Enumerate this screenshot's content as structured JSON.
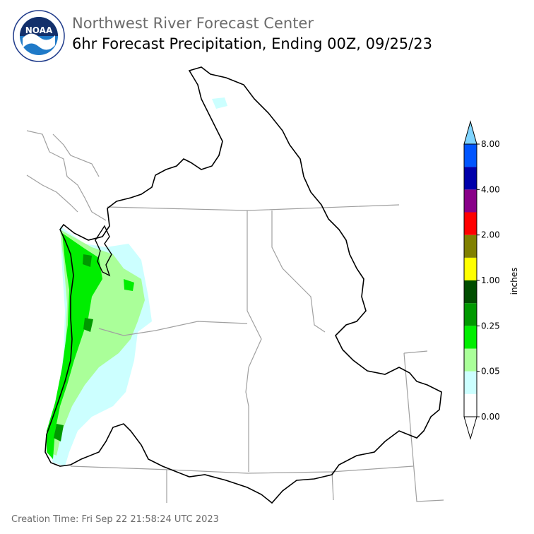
{
  "header": {
    "title_line1": "Northwest River Forecast Center",
    "title_line2": "6hr Forecast Precipitation, Ending 00Z, 09/25/23"
  },
  "logo": {
    "text": "NOAA",
    "ring_text": "NATIONAL OCEANIC AND ATMOSPHERIC ADMINISTRATION · U.S. DEPARTMENT OF COMMERCE",
    "icon": "noaa-logo-icon"
  },
  "footer": {
    "creation_time": "Creation Time: Fri Sep 22 21:58:24 UTC 2023"
  },
  "legend": {
    "unit": "inches",
    "tick_labels": [
      "0.00",
      "0.05",
      "0.25",
      "1.00",
      "2.00",
      "4.00",
      "8.00"
    ],
    "colors": [
      "#ffffff",
      "#ccffff",
      "#aaff99",
      "#00ee00",
      "#009900",
      "#004d00",
      "#ffff00",
      "#808000",
      "#ff0000",
      "#880088",
      "#0000aa",
      "#0055ff"
    ],
    "under_color": "#ffffff",
    "over_color": "#7fd4ff"
  },
  "colors": {
    "basin_outline": "#000000",
    "state_lines": "#a0a0a0",
    "precip_light": "#ccffff",
    "precip_mod": "#aaff99",
    "precip_green": "#00ee00",
    "precip_dark": "#009900"
  }
}
